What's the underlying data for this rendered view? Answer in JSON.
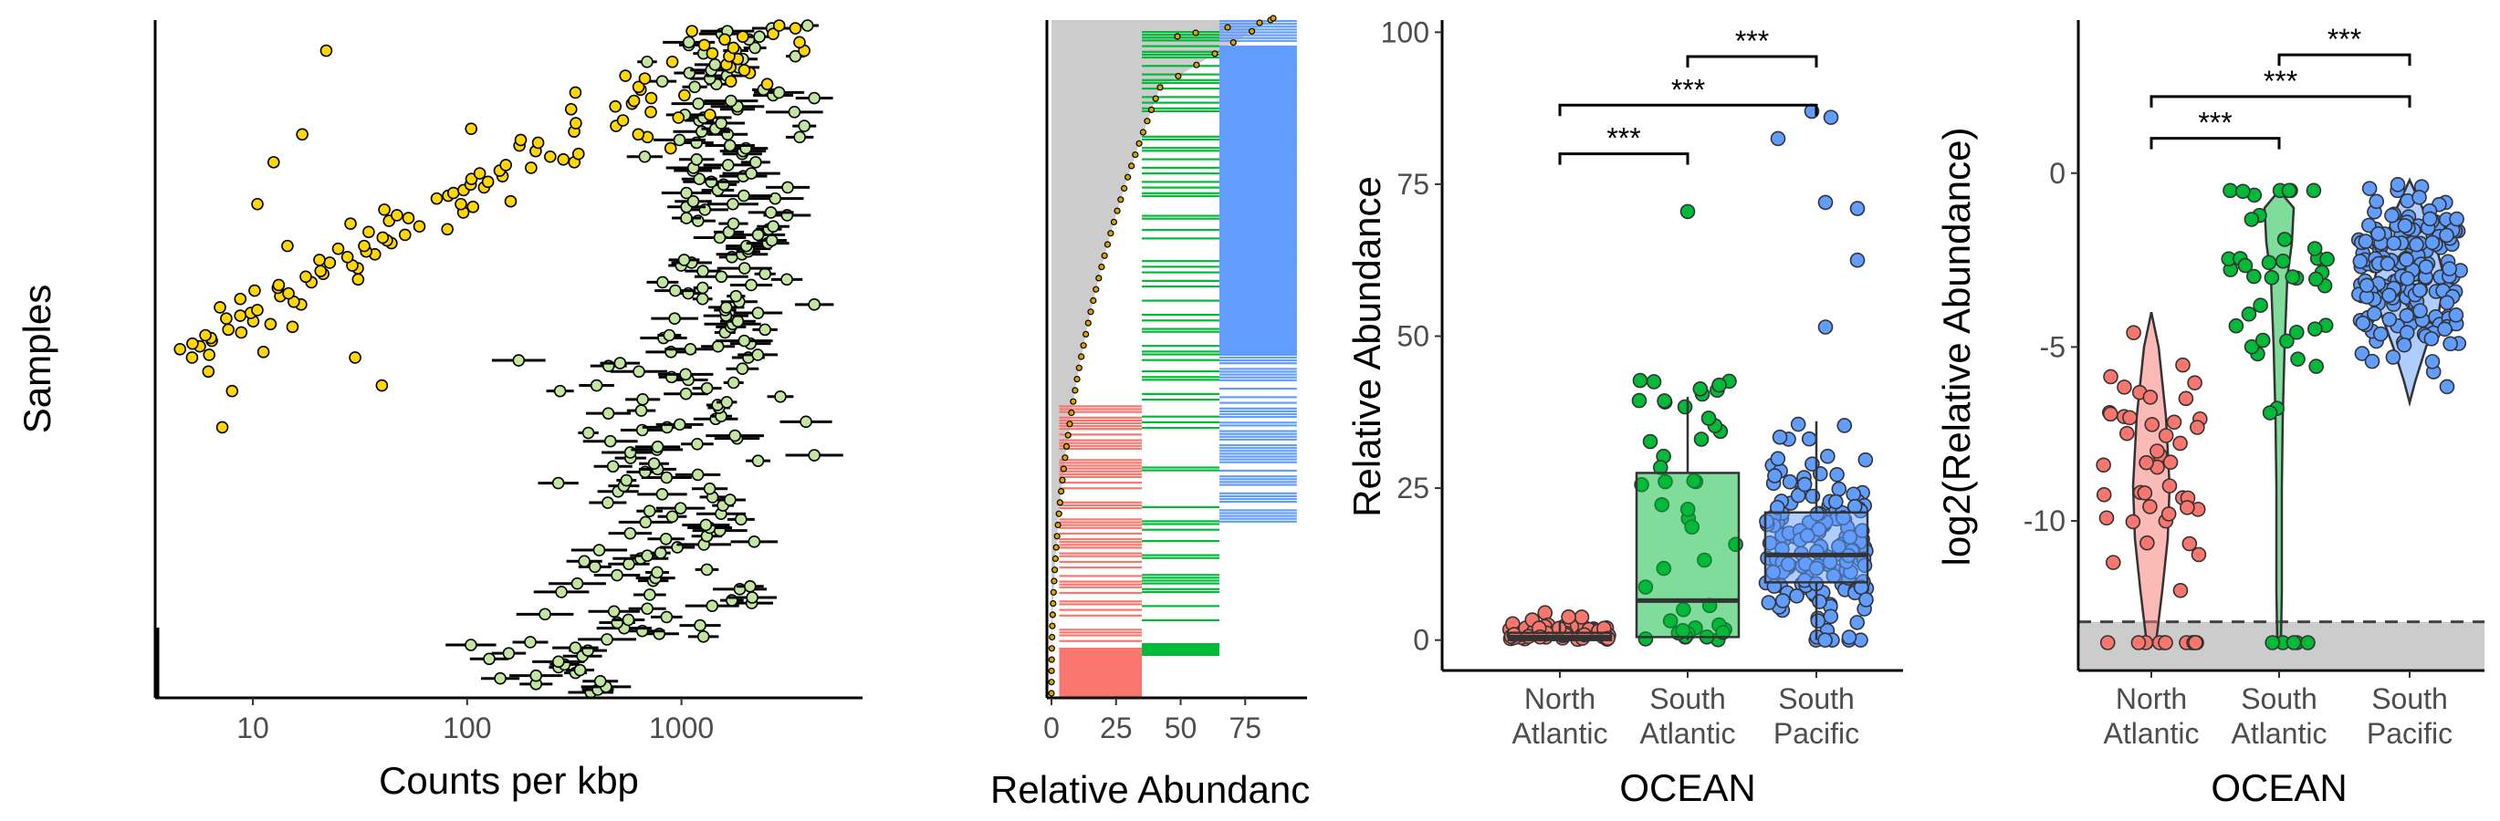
{
  "colors": {
    "north_atlantic": "#f8766d",
    "south_atlantic": "#00ba38",
    "south_pacific": "#619cff",
    "gold": "#ffd700",
    "light_green": "#c2e5a0",
    "grey_band": "#cccccc"
  },
  "chart_data": [
    {
      "type": "scatter",
      "xlabel": "Counts per kbp",
      "ylabel": "Samples",
      "x_scale": "log10",
      "xlim": [
        3.5,
        7000
      ],
      "x_ticks": [
        {
          "value": 10,
          "label": "10"
        },
        {
          "value": 100,
          "label": "100"
        },
        {
          "value": 1000,
          "label": "1000"
        }
      ],
      "grid": false,
      "legend": "none",
      "series": [
        {
          "marker": "gold-circle",
          "description_values": "gold points per sample (sample index, counts per kbp)"
        },
        {
          "marker": "light-green-circle-with-error-bar"
        }
      ],
      "n_samples": 240
    },
    {
      "type": "bar",
      "xlabel": "Relative Abundanc",
      "ylabel": "",
      "xlim": [
        0,
        100
      ],
      "x_ticks": [
        {
          "value": 0,
          "label": "0"
        },
        {
          "value": 25,
          "label": "25"
        },
        {
          "value": 50,
          "label": "50"
        },
        {
          "value": 75,
          "label": "75"
        }
      ],
      "grid": false,
      "legend": "none",
      "groups": [
        {
          "ocean": "North Atlantic",
          "color": "#f8766d",
          "band": [
            3,
            35
          ]
        },
        {
          "ocean": "South Atlantic",
          "color": "#00ba38",
          "band": [
            35,
            65
          ]
        },
        {
          "ocean": "South Pacific",
          "color": "#619cff",
          "band": [
            65,
            95
          ]
        }
      ]
    },
    {
      "type": "scatter",
      "subtype": "box-plot",
      "xlabel": "OCEAN",
      "ylabel": "Relative Abundance",
      "ylim": [
        -5,
        102
      ],
      "y_ticks": [
        0,
        25,
        50,
        75,
        100
      ],
      "categories": [
        [
          "North",
          "Atlantic"
        ],
        [
          "South",
          "Atlantic"
        ],
        [
          "South",
          "Pacific"
        ]
      ],
      "grid": false,
      "legend": "none",
      "boxes": [
        {
          "q1": 0,
          "median": 0.5,
          "q3": 1.2,
          "whisker_low": 0,
          "whisker_high": 3
        },
        {
          "q1": 0.5,
          "median": 6.5,
          "q3": 27.5,
          "whisker_low": 0,
          "whisker_high": 40
        },
        {
          "q1": 9.5,
          "median": 14,
          "q3": 21,
          "whisker_low": 0,
          "whisker_high": 36
        }
      ],
      "significance": [
        {
          "from": 0,
          "to": 1,
          "y": 80,
          "label": "***"
        },
        {
          "from": 0,
          "to": 2,
          "y": 88,
          "label": "***"
        },
        {
          "from": 1,
          "to": 2,
          "y": 96,
          "label": "***"
        }
      ]
    },
    {
      "type": "scatter",
      "subtype": "violin",
      "xlabel": "OCEAN",
      "ylabel": "log2(Relative Abundance)",
      "ylim": [
        -14.3,
        4.4
      ],
      "y_ticks": [
        {
          "value": 0,
          "label": "0"
        },
        {
          "value": -5,
          "label": "-5"
        },
        {
          "value": -10,
          "label": "-10"
        }
      ],
      "categories": [
        [
          "North",
          "Atlantic"
        ],
        [
          "South",
          "Atlantic"
        ],
        [
          "South",
          "Pacific"
        ]
      ],
      "grid": false,
      "legend": "none",
      "detection_limit": -12.9,
      "significance": [
        {
          "from": 0,
          "to": 1,
          "y": 1.0,
          "label": "***"
        },
        {
          "from": 0,
          "to": 2,
          "y": 2.2,
          "label": "***"
        },
        {
          "from": 1,
          "to": 2,
          "y": 3.4,
          "label": "***"
        }
      ]
    }
  ]
}
